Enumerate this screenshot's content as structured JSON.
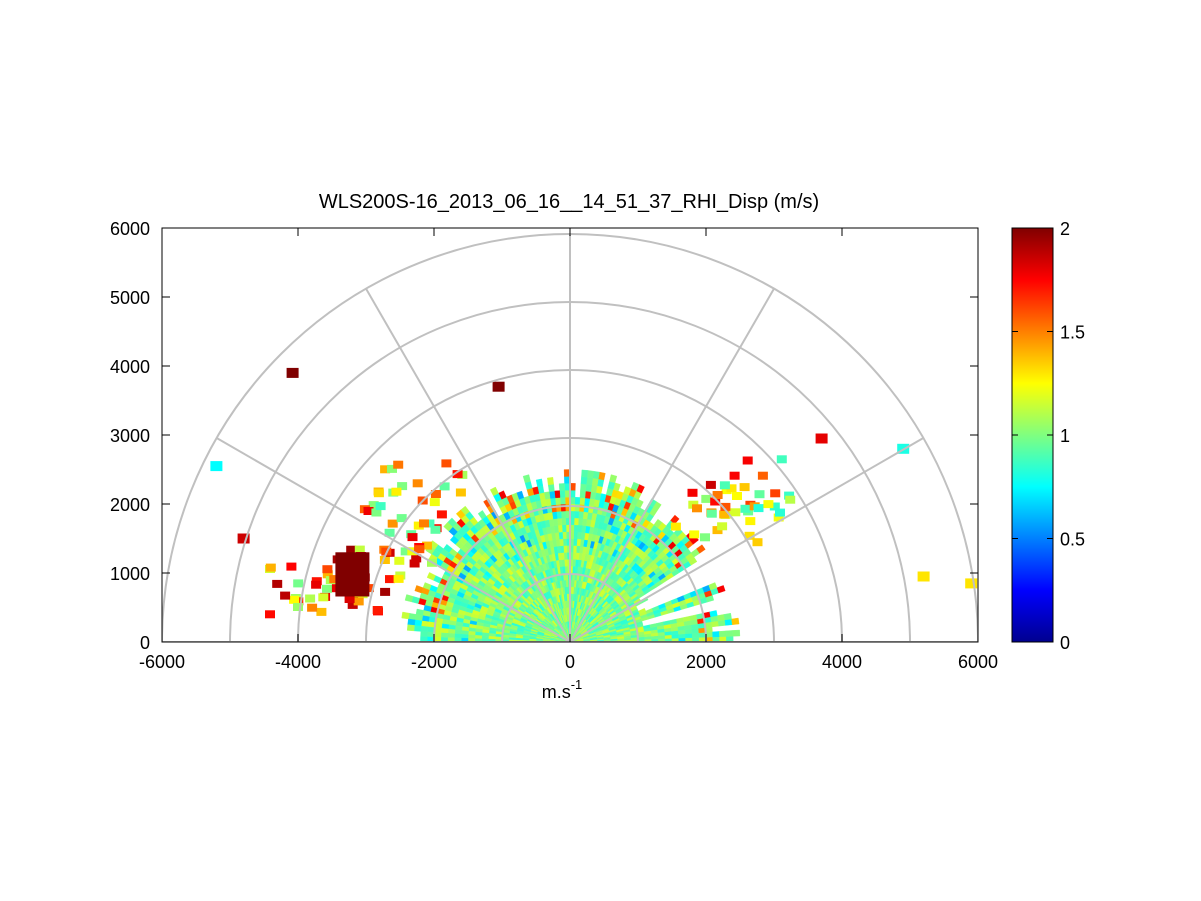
{
  "chart_data": {
    "type": "heatmap",
    "subtype": "polar-rhi-scan",
    "title": "WLS200S-16_2013_06_16__14_51_37_RHI_Disp (m/s)",
    "xlabel": "m.s",
    "xlabel_superscript": "-1",
    "ylabel": "",
    "xlim": [
      -6000,
      6000
    ],
    "ylim": [
      0,
      6000
    ],
    "xticks": [
      -6000,
      -4000,
      -2000,
      0,
      2000,
      4000,
      6000
    ],
    "yticks": [
      0,
      1000,
      2000,
      3000,
      4000,
      5000,
      6000
    ],
    "xtick_labels": [
      "-6000",
      "-4000",
      "-2000",
      "0",
      "2000",
      "4000",
      "6000"
    ],
    "ytick_labels": [
      "0",
      "1000",
      "2000",
      "3000",
      "4000",
      "5000",
      "6000"
    ],
    "polar_grid": {
      "range_rings": [
        1000,
        2000,
        3000,
        4000,
        5000,
        6000
      ],
      "spokes_deg": [
        0,
        30,
        60,
        90,
        120,
        150,
        180
      ]
    },
    "colorbar": {
      "colormap": "jet",
      "min": 0,
      "max": 2,
      "ticks": [
        0,
        0.5,
        1,
        1.5,
        2
      ],
      "tick_labels": [
        "0",
        "0.5",
        "1",
        "1.5",
        "2"
      ]
    },
    "field": {
      "variable": "Doppler velocity dispersion",
      "unit": "m/s",
      "typical_value": 1.0,
      "max_range_m": 2600,
      "high_dispersion_regions": [
        {
          "x": -3200,
          "y": 950,
          "value": 2.0
        },
        {
          "x": -2600,
          "y": 1600,
          "value": 1.9
        },
        {
          "x": -2300,
          "y": 2200,
          "value": 1.8
        },
        {
          "x": 2100,
          "y": 1900,
          "value": 1.9
        },
        {
          "x": 2600,
          "y": 2300,
          "value": 1.8
        },
        {
          "x": -3900,
          "y": 800,
          "value": 1.9
        }
      ],
      "isolated_returns": [
        {
          "x": -4080,
          "y": 3900,
          "value": 2.0
        },
        {
          "x": -1050,
          "y": 3700,
          "value": 2.0
        },
        {
          "x": -5200,
          "y": 2550,
          "value": 0.75
        },
        {
          "x": -4800,
          "y": 1500,
          "value": 1.85
        },
        {
          "x": 5200,
          "y": 950,
          "value": 1.3
        },
        {
          "x": 5900,
          "y": 850,
          "value": 1.3
        },
        {
          "x": 4900,
          "y": 2800,
          "value": 0.8
        },
        {
          "x": 3700,
          "y": 2950,
          "value": 1.8
        }
      ]
    }
  }
}
